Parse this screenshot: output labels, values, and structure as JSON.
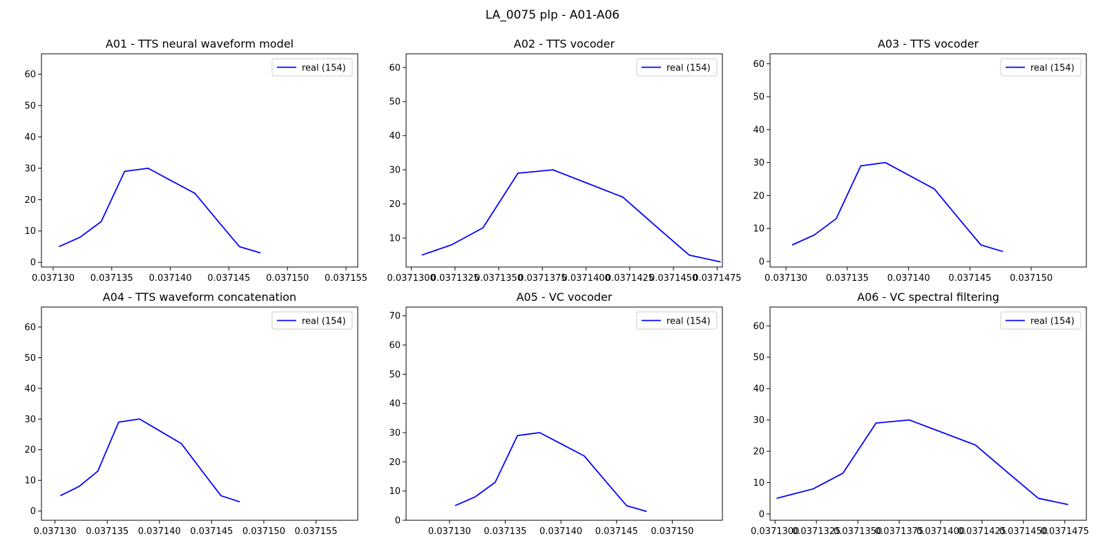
{
  "figure": {
    "title": "LA_0075 plp - A01-A06"
  },
  "chart_data": [
    {
      "type": "line",
      "title": "A01 - TTS neural waveform model",
      "xlabel": "",
      "ylabel": "",
      "xlim": [
        0.037129,
        0.037156
      ],
      "ylim": [
        -1.5,
        66.5
      ],
      "xticks": [
        0.03713,
        0.037135,
        0.03714,
        0.037145,
        0.03715,
        0.037155
      ],
      "xtick_labels": [
        "0.037130",
        "0.037135",
        "0.037140",
        "0.037145",
        "0.037150",
        "0.037155"
      ],
      "yticks": [
        0,
        10,
        20,
        30,
        40,
        50,
        60
      ],
      "legend": "top-right",
      "series": [
        {
          "name": "real (154)",
          "color": "#0000ff",
          "x": [
            0.0371305,
            0.0371323,
            0.0371341,
            0.0371361,
            0.0371381,
            0.0371401,
            0.0371421,
            0.0371441,
            0.0371459,
            0.0371477
          ],
          "y": [
            5,
            8,
            13,
            29,
            30,
            26,
            22,
            13,
            5,
            3
          ]
        }
      ]
    },
    {
      "type": "line",
      "title": "A02 - TTS vocoder",
      "xlabel": "",
      "ylabel": "",
      "xlim": [
        0.0371297,
        0.0371478
      ],
      "ylim": [
        1.5,
        64
      ],
      "xticks": [
        0.03713,
        0.0371325,
        0.037135,
        0.0371375,
        0.03714,
        0.0371425,
        0.037145,
        0.0371475
      ],
      "xtick_labels": [
        "0.0371300",
        "0.0371325",
        "0.0371350",
        "0.0371375",
        "0.0371400",
        "0.0371425",
        "0.0371450",
        "0.0371475"
      ],
      "yticks": [
        10,
        20,
        30,
        40,
        50,
        60
      ],
      "legend": "top-right",
      "series": [
        {
          "name": "real (154)",
          "color": "#0000ff",
          "x": [
            0.0371306,
            0.0371323,
            0.0371341,
            0.0371361,
            0.0371381,
            0.0371401,
            0.0371421,
            0.0371441,
            0.0371459,
            0.0371477
          ],
          "y": [
            5,
            8,
            13,
            29,
            30,
            26,
            22,
            13,
            5,
            3
          ]
        }
      ]
    },
    {
      "type": "line",
      "title": "A03 - TTS vocoder",
      "xlabel": "",
      "ylabel": "",
      "xlim": [
        0.0371287,
        0.0371545
      ],
      "ylim": [
        -1.7,
        63
      ],
      "xticks": [
        0.03713,
        0.037135,
        0.03714,
        0.037145,
        0.03715
      ],
      "xtick_labels": [
        "0.037130",
        "0.037135",
        "0.037140",
        "0.037145",
        "0.037150"
      ],
      "yticks": [
        0,
        10,
        20,
        30,
        40,
        50,
        60
      ],
      "legend": "top-right",
      "series": [
        {
          "name": "real (154)",
          "color": "#0000ff",
          "x": [
            0.0371305,
            0.0371323,
            0.0371341,
            0.0371361,
            0.0371381,
            0.0371401,
            0.0371421,
            0.0371441,
            0.0371459,
            0.0371477
          ],
          "y": [
            5,
            8,
            13,
            29,
            30,
            26,
            22,
            13,
            5,
            3
          ]
        }
      ]
    },
    {
      "type": "line",
      "title": "A04 - TTS waveform concatenation",
      "xlabel": "",
      "ylabel": "",
      "xlim": [
        0.0371287,
        0.037159
      ],
      "ylim": [
        -3,
        66.5
      ],
      "xticks": [
        0.03713,
        0.037135,
        0.03714,
        0.037145,
        0.03715,
        0.037155
      ],
      "xtick_labels": [
        "0.037130",
        "0.037135",
        "0.037140",
        "0.037145",
        "0.037150",
        "0.037155"
      ],
      "yticks": [
        0,
        10,
        20,
        30,
        40,
        50,
        60
      ],
      "legend": "top-right",
      "series": [
        {
          "name": "real (154)",
          "color": "#0000ff",
          "x": [
            0.0371305,
            0.0371323,
            0.0371341,
            0.0371361,
            0.0371381,
            0.0371401,
            0.0371421,
            0.0371441,
            0.0371459,
            0.0371477
          ],
          "y": [
            5,
            8,
            13,
            29,
            30,
            26,
            22,
            13,
            5,
            3
          ]
        }
      ]
    },
    {
      "type": "line",
      "title": "A05 - VC vocoder",
      "xlabel": "",
      "ylabel": "",
      "xlim": [
        0.0371261,
        0.0371545
      ],
      "ylim": [
        0,
        73
      ],
      "xticks": [
        0.03713,
        0.037135,
        0.03714,
        0.037145,
        0.03715
      ],
      "xtick_labels": [
        "0.037130",
        "0.037135",
        "0.037140",
        "0.037145",
        "0.037150"
      ],
      "yticks": [
        0,
        10,
        20,
        30,
        40,
        50,
        60,
        70
      ],
      "legend": "top-right",
      "series": [
        {
          "name": "real (154)",
          "color": "#0000ff",
          "x": [
            0.0371305,
            0.0371323,
            0.0371341,
            0.0371361,
            0.0371381,
            0.0371401,
            0.0371421,
            0.0371441,
            0.0371459,
            0.0371477
          ],
          "y": [
            5,
            8,
            13,
            29,
            30,
            26,
            22,
            13,
            5,
            3
          ]
        }
      ]
    },
    {
      "type": "line",
      "title": "A06 - VC spectral filtering",
      "xlabel": "",
      "ylabel": "",
      "xlim": [
        0.0371297,
        0.0371488
      ],
      "ylim": [
        -2,
        66
      ],
      "xticks": [
        0.03713,
        0.0371325,
        0.037135,
        0.0371375,
        0.03714,
        0.0371425,
        0.037145,
        0.0371475
      ],
      "xtick_labels": [
        "0.0371300",
        "0.0371325",
        "0.0371350",
        "0.0371375",
        "0.0371400",
        "0.0371425",
        "0.0371450",
        "0.0371475"
      ],
      "yticks": [
        0,
        10,
        20,
        30,
        40,
        50,
        60
      ],
      "legend": "top-right",
      "series": [
        {
          "name": "real (154)",
          "color": "#0000ff",
          "x": [
            0.0371301,
            0.0371323,
            0.0371341,
            0.0371361,
            0.0371381,
            0.0371401,
            0.0371421,
            0.0371441,
            0.0371459,
            0.0371477
          ],
          "y": [
            5,
            8,
            13,
            29,
            30,
            26,
            22,
            13,
            5,
            3
          ]
        }
      ]
    }
  ]
}
